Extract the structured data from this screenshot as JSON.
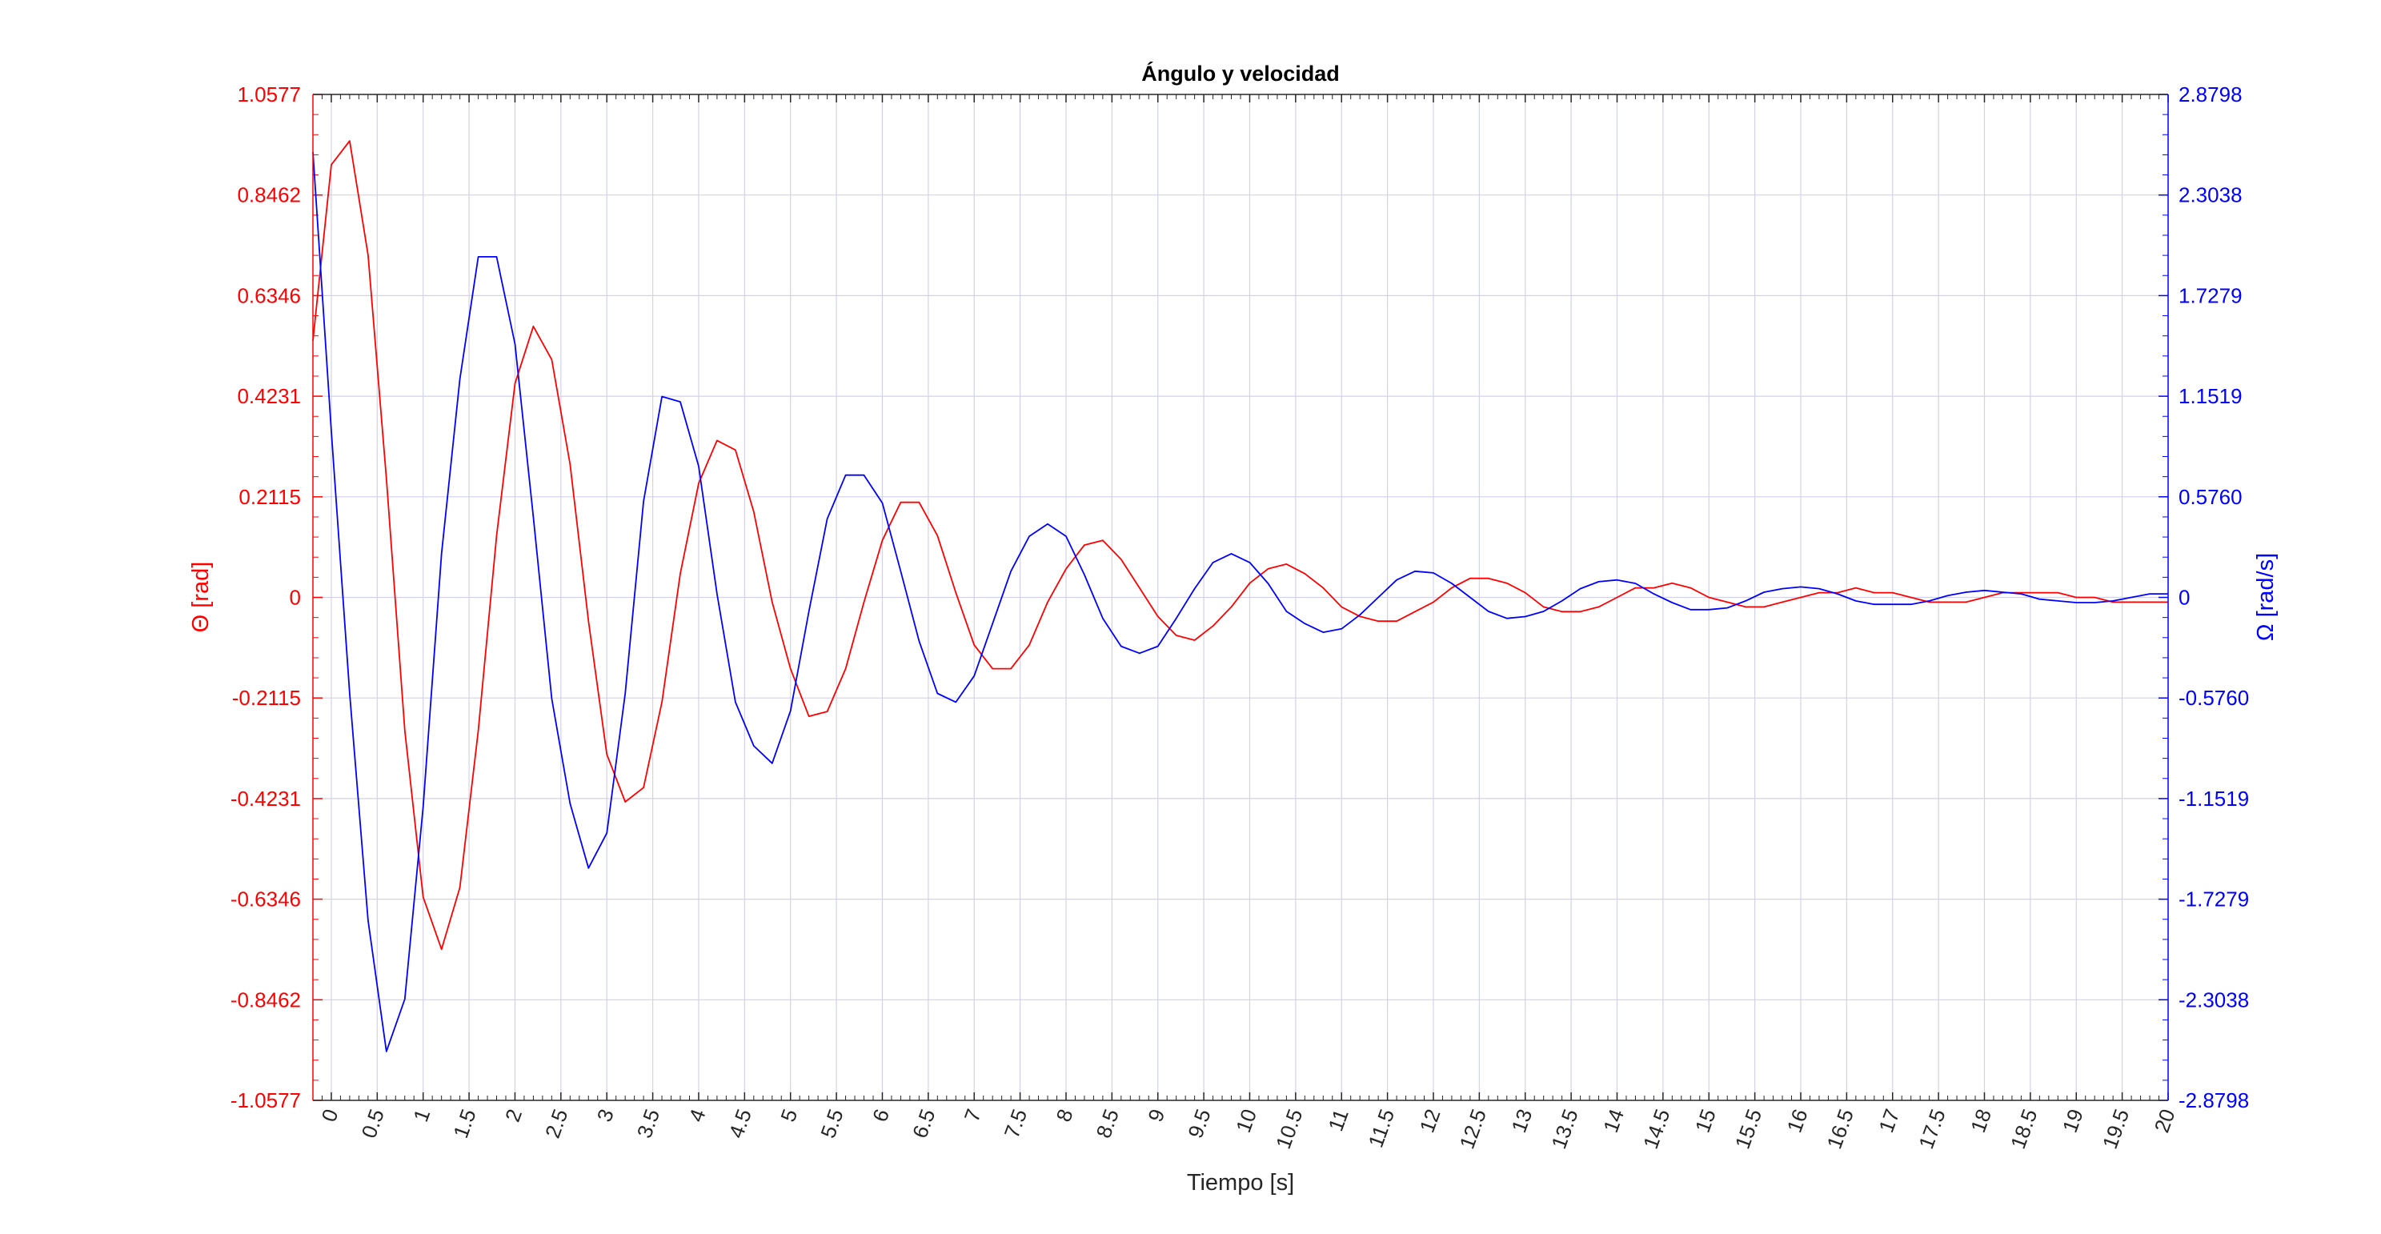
{
  "chart_data": {
    "type": "line",
    "title": "Ángulo y velocidad",
    "xlabel": "Tiempo [s]",
    "ylabel_left": "Θ [rad]",
    "ylabel_right": "Ω [rad/s]",
    "xlim": [
      -0.2,
      20
    ],
    "ylim_left": [
      -1.0577,
      1.0577
    ],
    "ylim_right": [
      -2.8798,
      2.8798
    ],
    "grid": true,
    "colors": {
      "left": "#ff0000",
      "right": "#0000ff",
      "grid": "#d2d2ea"
    },
    "x_ticks": [
      "0",
      "0.5",
      "1",
      "1.5",
      "2",
      "2.5",
      "3",
      "3.5",
      "4",
      "4.5",
      "5",
      "5.5",
      "6",
      "6.5",
      "7",
      "7.5",
      "8",
      "8.5",
      "9",
      "9.5",
      "10",
      "10.5",
      "11",
      "11.5",
      "12",
      "12.5",
      "13",
      "13.5",
      "14",
      "14.5",
      "15",
      "15.5",
      "16",
      "16.5",
      "17",
      "17.5",
      "18",
      "18.5",
      "19",
      "19.5",
      "20"
    ],
    "left_ticks": [
      "1.0577",
      "0.8462",
      "0.6346",
      "0.4231",
      "0.2115",
      "0",
      "-0.2115",
      "-0.4231",
      "-0.6346",
      "-0.8462",
      "-1.0577"
    ],
    "right_ticks": [
      "2.8798",
      "2.3038",
      "1.7279",
      "1.1519",
      "0.5760",
      "0",
      "-0.5760",
      "-1.1519",
      "-1.7279",
      "-2.3038",
      "-2.8798"
    ],
    "series": [
      {
        "axis": "left",
        "x": [
          -0.2,
          0.0,
          0.2,
          0.4,
          0.6,
          0.8,
          1.0,
          1.2,
          1.4,
          1.6,
          1.8,
          2.0,
          2.2,
          2.4,
          2.6,
          2.8,
          3.0,
          3.2,
          3.4,
          3.6,
          3.8,
          4.0,
          4.2,
          4.4,
          4.6,
          4.8,
          5.0,
          5.2,
          5.4,
          5.6,
          5.8,
          6.0,
          6.2,
          6.4,
          6.6,
          6.8,
          7.0,
          7.2,
          7.4,
          7.6,
          7.8,
          8.0,
          8.2,
          8.4,
          8.6,
          8.8,
          9.0,
          9.2,
          9.4,
          9.6,
          9.8,
          10.0,
          10.2,
          10.4,
          10.6,
          10.8,
          11.0,
          11.2,
          11.4,
          11.6,
          11.8,
          12.0,
          12.2,
          12.4,
          12.6,
          12.8,
          13.0,
          13.2,
          13.4,
          13.6,
          13.8,
          14.0,
          14.2,
          14.4,
          14.6,
          14.8,
          15.0,
          15.2,
          15.4,
          15.6,
          15.8,
          16.0,
          16.2,
          16.4,
          16.6,
          16.8,
          17.0,
          17.2,
          17.4,
          17.6,
          17.8,
          18.0,
          18.2,
          18.4,
          18.6,
          18.8,
          19.0,
          19.2,
          19.4,
          19.6,
          19.8,
          20.0
        ],
        "values": [
          0.54,
          0.91,
          0.96,
          0.72,
          0.25,
          -0.28,
          -0.63,
          -0.74,
          -0.61,
          -0.28,
          0.13,
          0.45,
          0.57,
          0.5,
          0.28,
          -0.05,
          -0.33,
          -0.43,
          -0.4,
          -0.22,
          0.05,
          0.24,
          0.33,
          0.31,
          0.18,
          -0.01,
          -0.15,
          -0.25,
          -0.24,
          -0.15,
          -0.01,
          0.12,
          0.2,
          0.2,
          0.13,
          0.01,
          -0.1,
          -0.15,
          -0.15,
          -0.1,
          -0.01,
          0.06,
          0.11,
          0.12,
          0.08,
          0.02,
          -0.04,
          -0.08,
          -0.09,
          -0.06,
          -0.02,
          0.03,
          0.06,
          0.07,
          0.05,
          0.02,
          -0.02,
          -0.04,
          -0.05,
          -0.05,
          -0.03,
          -0.01,
          0.02,
          0.04,
          0.04,
          0.03,
          0.01,
          -0.02,
          -0.03,
          -0.03,
          -0.02,
          0.0,
          0.02,
          0.02,
          0.03,
          0.02,
          0.0,
          -0.01,
          -0.02,
          -0.02,
          -0.01,
          0.0,
          0.01,
          0.01,
          0.02,
          0.01,
          0.01,
          0.0,
          -0.01,
          -0.01,
          -0.01,
          0.0,
          0.01,
          0.01,
          0.01,
          0.01,
          0.0,
          0.0,
          -0.01,
          -0.01,
          -0.01,
          -0.01
        ]
      },
      {
        "axis": "right",
        "x": [
          -0.2,
          0.0,
          0.2,
          0.4,
          0.6,
          0.8,
          1.0,
          1.2,
          1.4,
          1.6,
          1.8,
          2.0,
          2.2,
          2.4,
          2.6,
          2.8,
          3.0,
          3.2,
          3.4,
          3.6,
          3.8,
          4.0,
          4.2,
          4.4,
          4.6,
          4.8,
          5.0,
          5.2,
          5.4,
          5.6,
          5.8,
          6.0,
          6.2,
          6.4,
          6.6,
          6.8,
          7.0,
          7.2,
          7.4,
          7.6,
          7.8,
          8.0,
          8.2,
          8.4,
          8.6,
          8.8,
          9.0,
          9.2,
          9.4,
          9.6,
          9.8,
          10.0,
          10.2,
          10.4,
          10.6,
          10.8,
          11.0,
          11.2,
          11.4,
          11.6,
          11.8,
          12.0,
          12.2,
          12.4,
          12.6,
          12.8,
          13.0,
          13.2,
          13.4,
          13.6,
          13.8,
          14.0,
          14.2,
          14.4,
          14.6,
          14.8,
          15.0,
          15.2,
          15.4,
          15.6,
          15.8,
          16.0,
          16.2,
          16.4,
          16.6,
          16.8,
          17.0,
          17.2,
          17.4,
          17.6,
          17.8,
          18.0,
          18.2,
          18.4,
          18.6,
          18.8,
          19.0,
          19.2,
          19.4,
          19.6,
          19.8,
          20.0
        ],
        "values": [
          2.55,
          0.95,
          -0.55,
          -1.85,
          -2.6,
          -2.3,
          -1.2,
          0.25,
          1.25,
          1.95,
          1.95,
          1.45,
          0.46,
          -0.58,
          -1.18,
          -1.55,
          -1.35,
          -0.55,
          0.55,
          1.15,
          1.12,
          0.75,
          0.02,
          -0.6,
          -0.85,
          -0.95,
          -0.65,
          -0.08,
          0.45,
          0.7,
          0.7,
          0.54,
          0.15,
          -0.25,
          -0.55,
          -0.6,
          -0.45,
          -0.15,
          0.15,
          0.35,
          0.42,
          0.35,
          0.13,
          -0.12,
          -0.28,
          -0.32,
          -0.28,
          -0.12,
          0.05,
          0.2,
          0.25,
          0.2,
          0.08,
          -0.08,
          -0.15,
          -0.2,
          -0.18,
          -0.1,
          0.0,
          0.1,
          0.15,
          0.14,
          0.08,
          0.0,
          -0.08,
          -0.12,
          -0.11,
          -0.08,
          -0.02,
          0.05,
          0.09,
          0.1,
          0.08,
          0.02,
          -0.03,
          -0.07,
          -0.07,
          -0.06,
          -0.02,
          0.03,
          0.05,
          0.06,
          0.05,
          0.02,
          -0.02,
          -0.04,
          -0.04,
          -0.04,
          -0.02,
          0.01,
          0.03,
          0.04,
          0.03,
          0.02,
          -0.01,
          -0.02,
          -0.03,
          -0.03,
          -0.02,
          0.0,
          0.02,
          0.02
        ]
      }
    ]
  }
}
